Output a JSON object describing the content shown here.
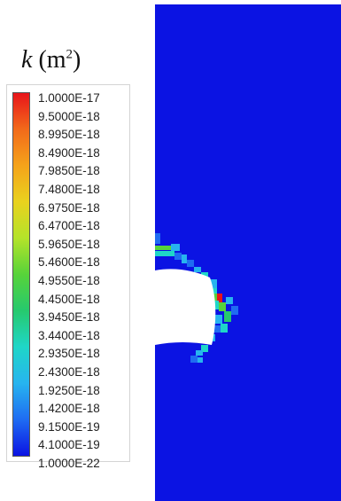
{
  "legend": {
    "title_symbol": "k",
    "title_unit_open": "(m",
    "title_unit_exp": "2",
    "title_unit_close": ")",
    "labels": [
      "1.0000E-17",
      "9.5000E-18",
      "8.9950E-18",
      "8.4900E-18",
      "7.9850E-18",
      "7.4800E-18",
      "6.9750E-18",
      "6.4700E-18",
      "5.9650E-18",
      "5.4600E-18",
      "4.9550E-18",
      "4.4500E-18",
      "3.9450E-18",
      "3.4400E-18",
      "2.9350E-18",
      "2.4300E-18",
      "1.9250E-18",
      "1.4200E-18",
      "9.1500E-19",
      "4.1000E-19",
      "1.0000E-22"
    ],
    "colormap": [
      "#e8141a",
      "#f26a1a",
      "#f5a31a",
      "#e9d21e",
      "#b4e32a",
      "#57d33a",
      "#26c96e",
      "#1fd6c8",
      "#27b4ef",
      "#1f6cf2",
      "#0b13e3"
    ]
  }
}
